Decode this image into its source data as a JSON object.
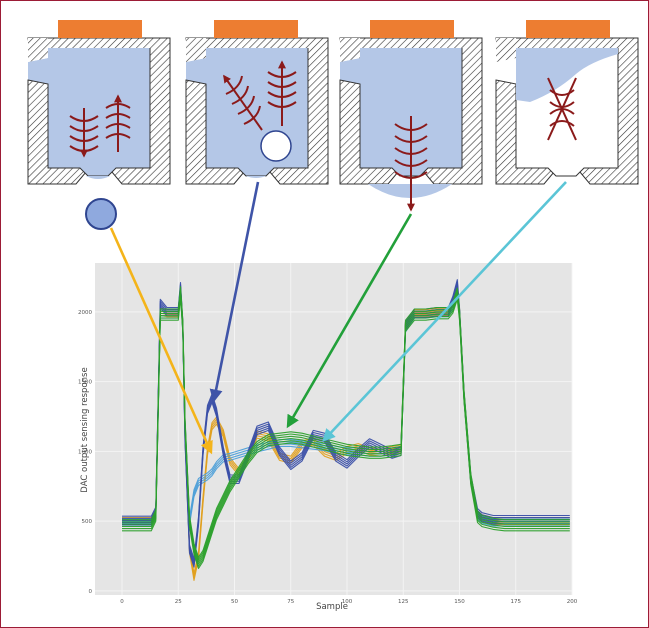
{
  "colors": {
    "border": "#9c1c36",
    "nozzle_fill": "#b4c7e7",
    "wall_hatch": "#333333",
    "electrode": "#ed7d31",
    "wave_arrow": "#8b1a1a",
    "plot_background": "#e5e5e5",
    "grid": "#f4f4f4"
  },
  "icons": [
    "nozzle-state-1-icon",
    "nozzle-state-2-icon",
    "nozzle-state-3-icon",
    "nozzle-state-4-icon",
    "ejected-droplet-icon",
    "air-bubble-icon"
  ],
  "chart_data": {
    "type": "line",
    "title": "",
    "xlabel": "Sample",
    "ylabel": "DAC output sensing response",
    "xlim": [
      -12,
      200
    ],
    "ylim": [
      -30,
      2350
    ],
    "xticks": [
      0,
      25,
      50,
      75,
      100,
      125,
      150,
      175,
      200
    ],
    "yticks": [
      0,
      500,
      1000,
      1500,
      2000
    ],
    "grid": true,
    "legend": "none",
    "series": [
      {
        "color": "#e0a020",
        "spread": 25,
        "copies": 4,
        "x": [
          0,
          13,
          15,
          17,
          20,
          25,
          26,
          27,
          28,
          30,
          32,
          34,
          36,
          38,
          40,
          42,
          45,
          48,
          52,
          56,
          60,
          65,
          70,
          75,
          80,
          85,
          90,
          95,
          100,
          105,
          110,
          115,
          120,
          124,
          126,
          130,
          135,
          140,
          145,
          147,
          149,
          150,
          152,
          155,
          158,
          160,
          165,
          170,
          180,
          190,
          199
        ],
        "y": [
          500,
          500,
          560,
          2000,
          1990,
          1990,
          2150,
          1900,
          1200,
          300,
          100,
          250,
          650,
          1000,
          1180,
          1220,
          1130,
          930,
          850,
          950,
          1120,
          1100,
          960,
          940,
          1050,
          1070,
          990,
          960,
          1010,
          1030,
          1000,
          990,
          1010,
          1020,
          1900,
          1990,
          1990,
          2000,
          2000,
          2050,
          2150,
          2000,
          1400,
          800,
          550,
          520,
          500,
          500,
          500,
          500,
          500
        ]
      },
      {
        "color": "#4d9fd8",
        "spread": 25,
        "copies": 4,
        "x": [
          0,
          13,
          15,
          17,
          20,
          25,
          26,
          27,
          28,
          30,
          32,
          34,
          36,
          38,
          40,
          42,
          45,
          48,
          52,
          56,
          60,
          65,
          70,
          75,
          80,
          85,
          90,
          95,
          100,
          105,
          110,
          115,
          120,
          124,
          126,
          130,
          135,
          140,
          145,
          147,
          149,
          150,
          152,
          155,
          158,
          160,
          165,
          170,
          180,
          190,
          199
        ],
        "y": [
          490,
          490,
          550,
          1980,
          1980,
          1980,
          2140,
          1880,
          1200,
          500,
          700,
          780,
          800,
          820,
          850,
          900,
          950,
          960,
          980,
          1000,
          1020,
          1040,
          1060,
          1060,
          1050,
          1040,
          1030,
          1010,
          1000,
          1000,
          990,
          990,
          1000,
          1010,
          1880,
          1980,
          1980,
          1990,
          1990,
          2040,
          2140,
          1990,
          1400,
          800,
          540,
          510,
          490,
          490,
          490,
          490,
          490
        ]
      },
      {
        "color": "#3a4fa8",
        "spread": 30,
        "copies": 5,
        "x": [
          0,
          13,
          15,
          17,
          20,
          25,
          26,
          27,
          28,
          30,
          32,
          34,
          36,
          38,
          40,
          42,
          45,
          48,
          52,
          56,
          60,
          65,
          70,
          75,
          80,
          85,
          90,
          95,
          100,
          105,
          110,
          115,
          120,
          124,
          126,
          130,
          135,
          140,
          145,
          147,
          149,
          150,
          152,
          155,
          158,
          160,
          165,
          170,
          180,
          190,
          199
        ],
        "y": [
          505,
          505,
          570,
          2060,
          2000,
          2000,
          2180,
          1900,
          1100,
          300,
          200,
          500,
          1000,
          1300,
          1380,
          1280,
          1000,
          800,
          800,
          970,
          1150,
          1180,
          1000,
          900,
          960,
          1120,
          1100,
          960,
          910,
          990,
          1060,
          1020,
          980,
          1000,
          1900,
          1990,
          1990,
          2000,
          2000,
          2080,
          2200,
          2000,
          1400,
          800,
          560,
          530,
          510,
          510,
          510,
          510,
          510
        ]
      },
      {
        "color": "#2ca02c",
        "spread": 40,
        "copies": 6,
        "x": [
          0,
          13,
          15,
          17,
          20,
          25,
          26,
          27,
          28,
          30,
          32,
          34,
          36,
          38,
          40,
          42,
          45,
          48,
          52,
          56,
          60,
          65,
          70,
          75,
          80,
          85,
          90,
          95,
          100,
          105,
          110,
          115,
          120,
          124,
          126,
          130,
          135,
          140,
          145,
          147,
          149,
          150,
          152,
          155,
          158,
          160,
          165,
          170,
          180,
          190,
          199
        ],
        "y": [
          470,
          470,
          540,
          1980,
          1980,
          1980,
          2140,
          1900,
          1200,
          500,
          300,
          200,
          250,
          350,
          450,
          550,
          650,
          750,
          850,
          950,
          1030,
          1080,
          1090,
          1100,
          1090,
          1070,
          1050,
          1030,
          1010,
          1000,
          990,
          990,
          1000,
          1010,
          1900,
          1980,
          1980,
          1990,
          1990,
          2030,
          2130,
          1980,
          1400,
          800,
          530,
          500,
          480,
          470,
          470,
          470,
          470
        ]
      }
    ]
  }
}
